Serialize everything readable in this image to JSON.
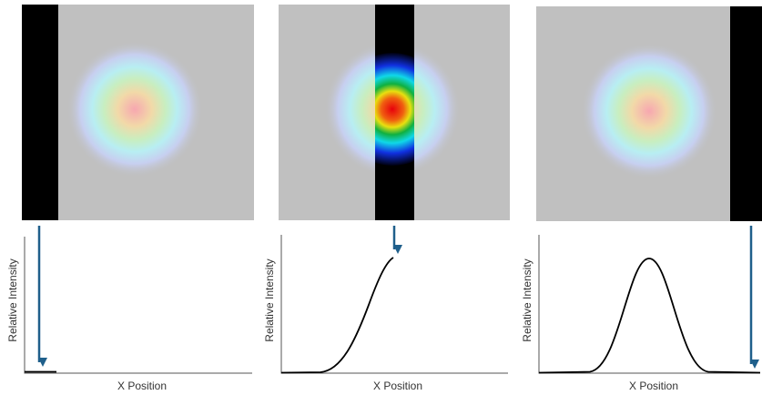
{
  "panels": [
    {
      "y_label": "Relative Intensity",
      "x_label": "X Position"
    },
    {
      "y_label": "Relative Intensity",
      "x_label": "X Position"
    },
    {
      "y_label": "Relative Intensity",
      "x_label": "X Position"
    }
  ]
}
